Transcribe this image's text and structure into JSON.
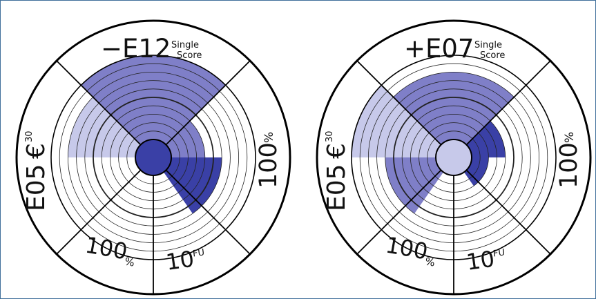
{
  "colors": {
    "dark_blue": "#3a40a6",
    "mid_blue": "#7f7fc8",
    "light_blue": "#c7c9ea",
    "ring_line": "#222222",
    "outline": "#000000"
  },
  "charts": [
    {
      "score_label": "−E12",
      "score_caption_line1": "Single",
      "score_caption_line2": "Score",
      "left_label_main": "E05",
      "left_label_symbol": "€",
      "left_label_sup": "30",
      "right_label_main": "100",
      "right_label_sup": "%",
      "bottom_left_main": "100",
      "bottom_left_sub": "%",
      "bottom_right_main": "10",
      "bottom_right_sup": "FU",
      "center_color": "dark_blue",
      "sectors": [
        {
          "name": "top",
          "level": 10,
          "color": "mid_blue"
        },
        {
          "name": "right-upper",
          "level": 4,
          "color": "mid_blue"
        },
        {
          "name": "right-lower",
          "level": 6,
          "color": "dark_blue"
        },
        {
          "name": "left",
          "level": 8,
          "color": "light_blue"
        }
      ]
    },
    {
      "score_label": "+E07",
      "score_caption_line1": "Single",
      "score_caption_line2": "Score",
      "left_label_main": "E05",
      "left_label_symbol": "€",
      "left_label_sup": "30",
      "right_label_main": "100",
      "right_label_sup": "%",
      "bottom_left_main": "100",
      "bottom_left_sub": "%",
      "bottom_right_main": "10",
      "bottom_right_sup": "FU",
      "center_color": "light_blue",
      "sectors": [
        {
          "name": "top",
          "level": 8,
          "color": "mid_blue"
        },
        {
          "name": "right-upper",
          "level": 4,
          "color": "dark_blue"
        },
        {
          "name": "right-lower",
          "level": 2,
          "color": "dark_blue"
        },
        {
          "name": "left",
          "level": 10,
          "color": "light_blue"
        },
        {
          "name": "left-lower",
          "level": 6,
          "color": "mid_blue"
        }
      ]
    }
  ]
}
